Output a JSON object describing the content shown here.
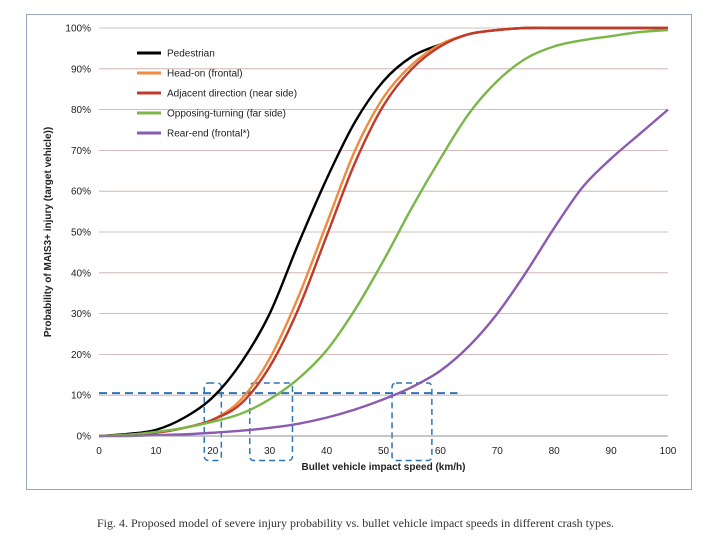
{
  "caption": "Fig. 4. Proposed model of severe injury probability vs. bullet vehicle impact speeds in different crash types.",
  "chart_data": {
    "type": "line",
    "xlabel": "Bullet vehicle impact speed (km/h)",
    "ylabel": "Probability of MAIS3+ injury (target vehicle))",
    "xlim": [
      0,
      100
    ],
    "ylim": [
      0,
      100
    ],
    "x_ticks": [
      "0",
      "10",
      "20",
      "30",
      "40",
      "50",
      "60",
      "70",
      "80",
      "90",
      "100"
    ],
    "y_ticks": [
      "0%",
      "10%",
      "20%",
      "30%",
      "40%",
      "50%",
      "60%",
      "70%",
      "80%",
      "90%",
      "100%"
    ],
    "grid": "horizontal",
    "legend_position": "top-left",
    "x": [
      0,
      5,
      10,
      15,
      20,
      25,
      30,
      35,
      40,
      45,
      50,
      55,
      60,
      65,
      70,
      75,
      80,
      85,
      90,
      95,
      100
    ],
    "series": [
      {
        "name": "Pedestrian",
        "color": "#000000",
        "values": [
          0,
          0.5,
          1.5,
          4.5,
          9.5,
          18,
          30,
          47,
          63,
          77,
          87,
          93,
          96,
          98.5,
          99.5,
          100,
          100,
          100,
          100,
          100,
          100
        ]
      },
      {
        "name": "Head-on (frontal)",
        "color": "#f08a3c",
        "values": [
          0,
          0.3,
          0.8,
          2,
          4,
          9,
          19,
          34,
          52,
          70,
          83,
          91,
          96,
          98.5,
          99.5,
          100,
          100,
          100,
          100,
          100,
          100
        ]
      },
      {
        "name": "Adjacent direction (near side)",
        "color": "#c0392b",
        "values": [
          0,
          0.3,
          0.8,
          2,
          4,
          8,
          17,
          31,
          49,
          67,
          81,
          90,
          95.5,
          98.5,
          99.5,
          100,
          100,
          100,
          100,
          100,
          100
        ]
      },
      {
        "name": "Opposing-turning (far side)",
        "color": "#7ab648",
        "values": [
          0,
          0.3,
          1,
          2,
          3.5,
          5.5,
          9,
          14,
          21,
          31,
          43,
          56,
          68,
          79,
          87,
          92.5,
          95.5,
          97,
          98,
          99,
          99.5
        ]
      },
      {
        "name": "Rear-end (frontal*)",
        "color": "#8a5bb0",
        "values": [
          0,
          0,
          0.2,
          0.4,
          0.8,
          1.3,
          2,
          3,
          4.5,
          6.5,
          9,
          12,
          16,
          22,
          30,
          40,
          51,
          61,
          68,
          74,
          80
        ]
      }
    ],
    "annotations": {
      "threshold_y": 10.5,
      "threshold_x_end": 63,
      "boxes": [
        {
          "x0": 18.5,
          "x1": 21.5,
          "y0": -6,
          "y1": 13
        },
        {
          "x0": 26.5,
          "x1": 34,
          "y0": -6,
          "y1": 13
        },
        {
          "x0": 51.5,
          "x1": 58.5,
          "y0": -6,
          "y1": 13
        }
      ]
    }
  }
}
